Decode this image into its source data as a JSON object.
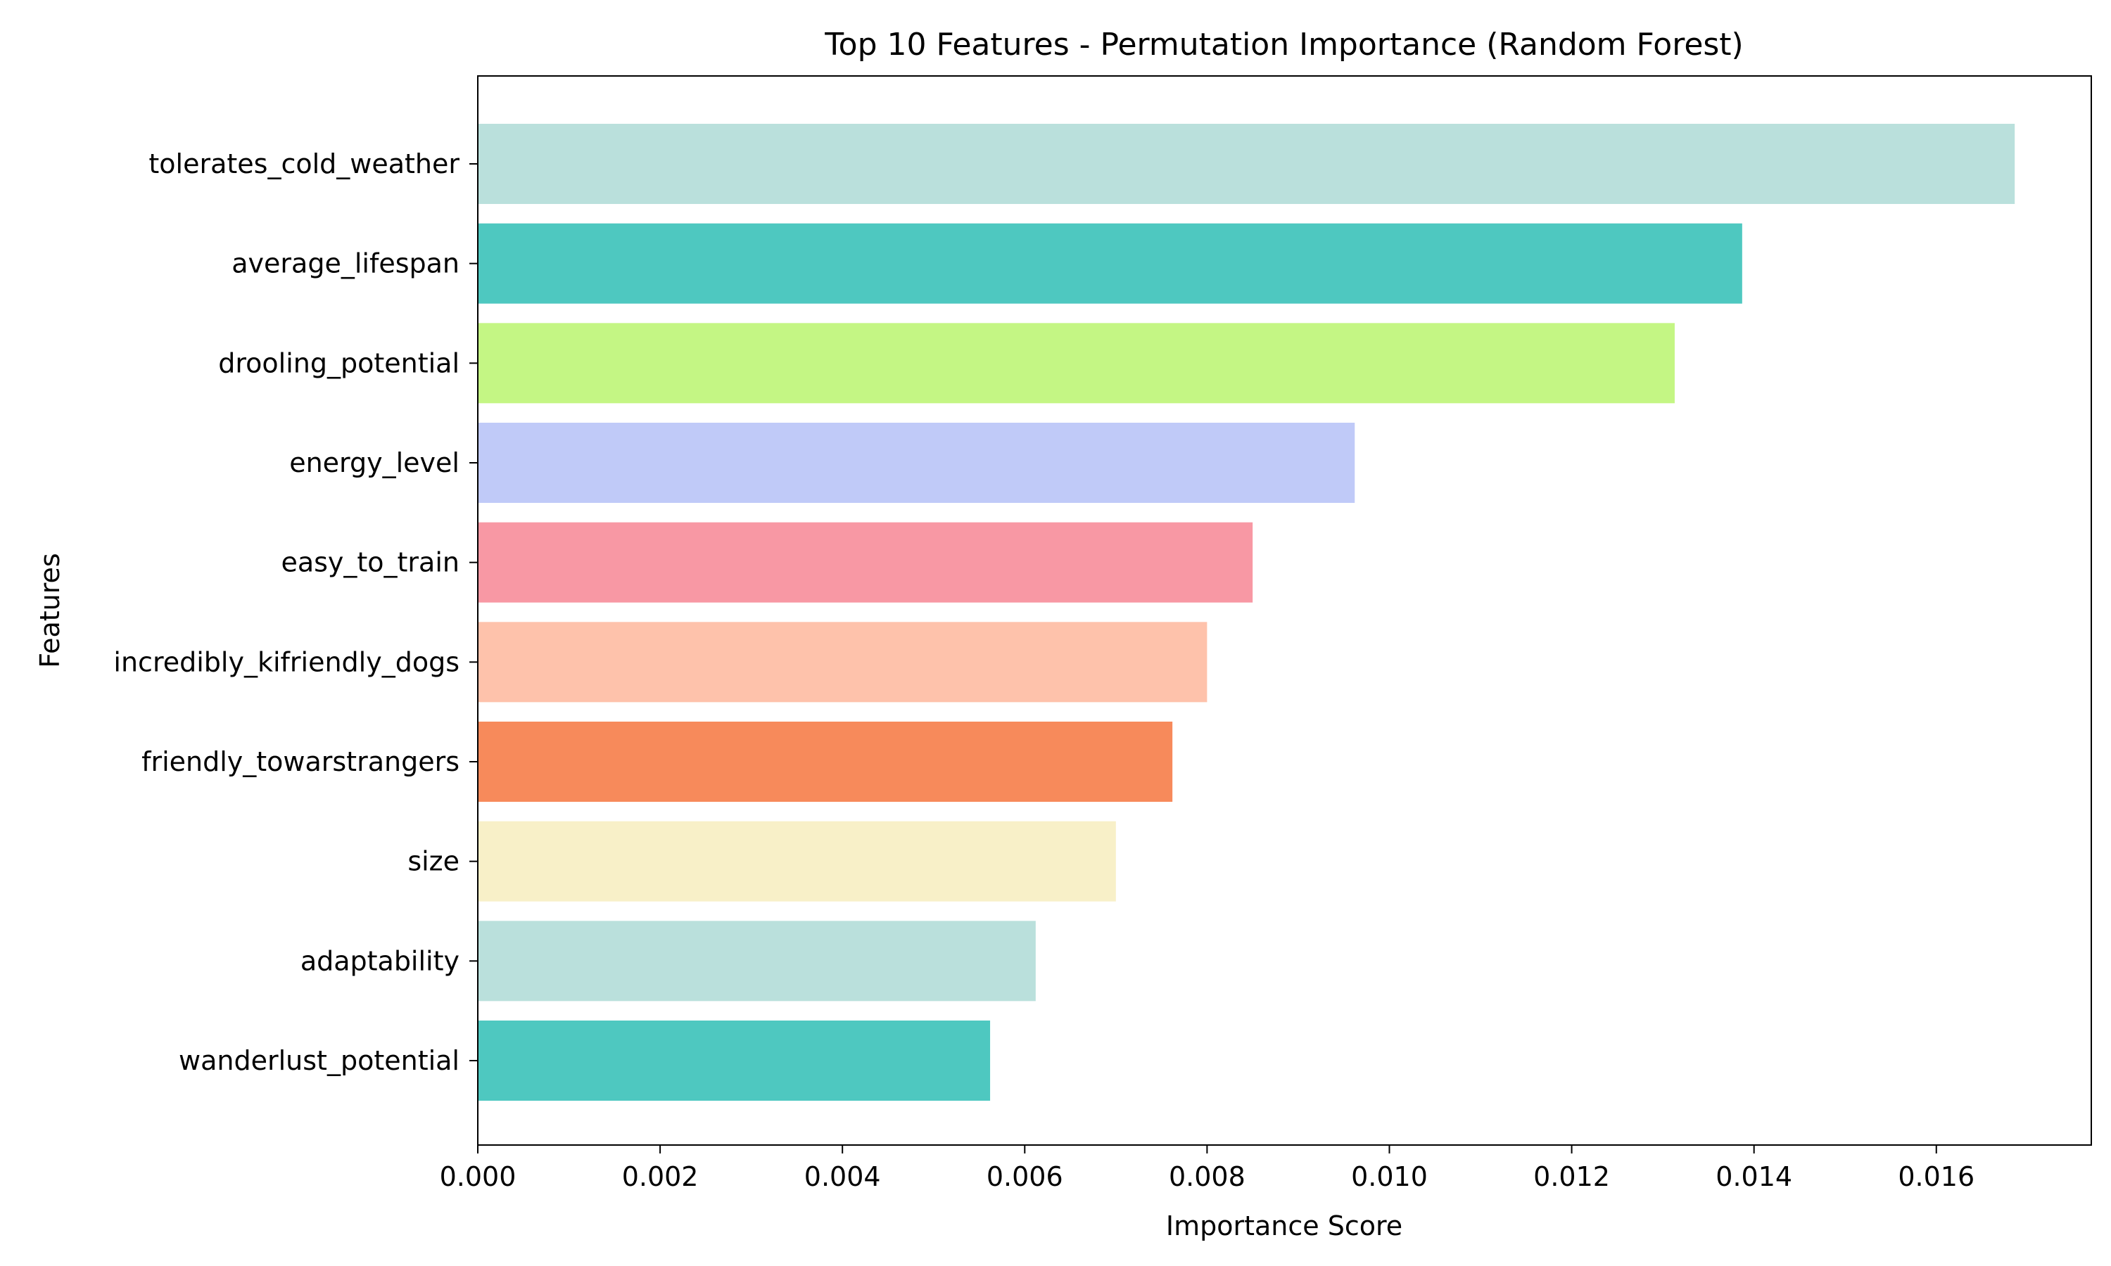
{
  "chart_data": {
    "type": "bar",
    "orientation": "horizontal",
    "title": "Top 10 Features - Permutation Importance (Random Forest)",
    "xlabel": "Importance Score",
    "ylabel": "Features",
    "categories": [
      "tolerates_cold_weather",
      "average_lifespan",
      "drooling_potential",
      "energy_level",
      "easy_to_train",
      "incredibly_kifriendly_dogs",
      "friendly_towarstrangers",
      "size",
      "adaptability",
      "wanderlust_potential"
    ],
    "values": [
      0.01686,
      0.01387,
      0.01313,
      0.00962,
      0.0085,
      0.008,
      0.00762,
      0.007,
      0.00612,
      0.00562
    ],
    "colors": [
      "#bae0dc",
      "#4ec8c0",
      "#c4f684",
      "#c0caf8",
      "#f898a4",
      "#fec2ab",
      "#f78a5b",
      "#f8f0c8",
      "#bae0dc",
      "#4ec8c0"
    ],
    "xlim": [
      0,
      0.0177
    ],
    "xticks": [
      "0.000",
      "0.002",
      "0.004",
      "0.006",
      "0.008",
      "0.010",
      "0.012",
      "0.014",
      "0.016"
    ],
    "grid": false,
    "legend": "none"
  }
}
